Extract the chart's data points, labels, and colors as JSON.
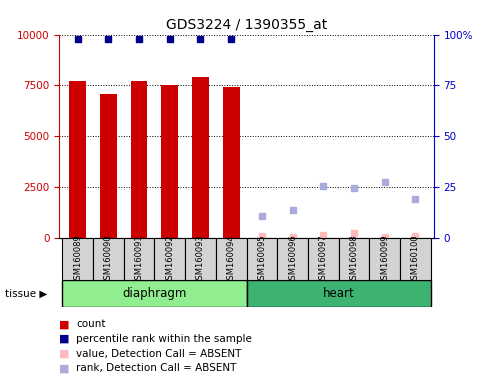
{
  "title": "GDS3224 / 1390355_at",
  "samples": [
    "GSM160089",
    "GSM160090",
    "GSM160091",
    "GSM160092",
    "GSM160093",
    "GSM160094",
    "GSM160095",
    "GSM160096",
    "GSM160097",
    "GSM160098",
    "GSM160099",
    "GSM160100"
  ],
  "groups": [
    {
      "name": "diaphragm",
      "indices": [
        0,
        5
      ],
      "color": "#90ee90"
    },
    {
      "name": "heart",
      "indices": [
        6,
        11
      ],
      "color": "#3cb371"
    }
  ],
  "bar_values": [
    7700,
    7100,
    7700,
    7500,
    7900,
    7400,
    null,
    null,
    null,
    null,
    null,
    null
  ],
  "bar_color": "#cc0000",
  "percentile_rank": [
    98,
    98,
    98,
    98,
    98,
    98,
    null,
    null,
    null,
    null,
    null,
    null
  ],
  "percentile_rank_color": "#00008b",
  "absent_value": [
    null,
    null,
    null,
    null,
    null,
    null,
    80,
    50,
    150,
    250,
    30,
    100
  ],
  "absent_rank": [
    null,
    null,
    null,
    null,
    null,
    null,
    1100,
    1400,
    2550,
    2450,
    2750,
    1900
  ],
  "absent_color": "#aaaadd",
  "absent_value_color": "#ffbbbb",
  "ylim_left": [
    0,
    10000
  ],
  "ylim_right": [
    0,
    100
  ],
  "yticks_left": [
    0,
    2500,
    5000,
    7500,
    10000
  ],
  "yticks_right": [
    0,
    25,
    50,
    75,
    100
  ],
  "bar_width": 0.55,
  "legend": [
    {
      "label": "count",
      "color": "#cc0000"
    },
    {
      "label": "percentile rank within the sample",
      "color": "#00008b"
    },
    {
      "label": "value, Detection Call = ABSENT",
      "color": "#ffbbbb"
    },
    {
      "label": "rank, Detection Call = ABSENT",
      "color": "#aaaadd"
    }
  ]
}
